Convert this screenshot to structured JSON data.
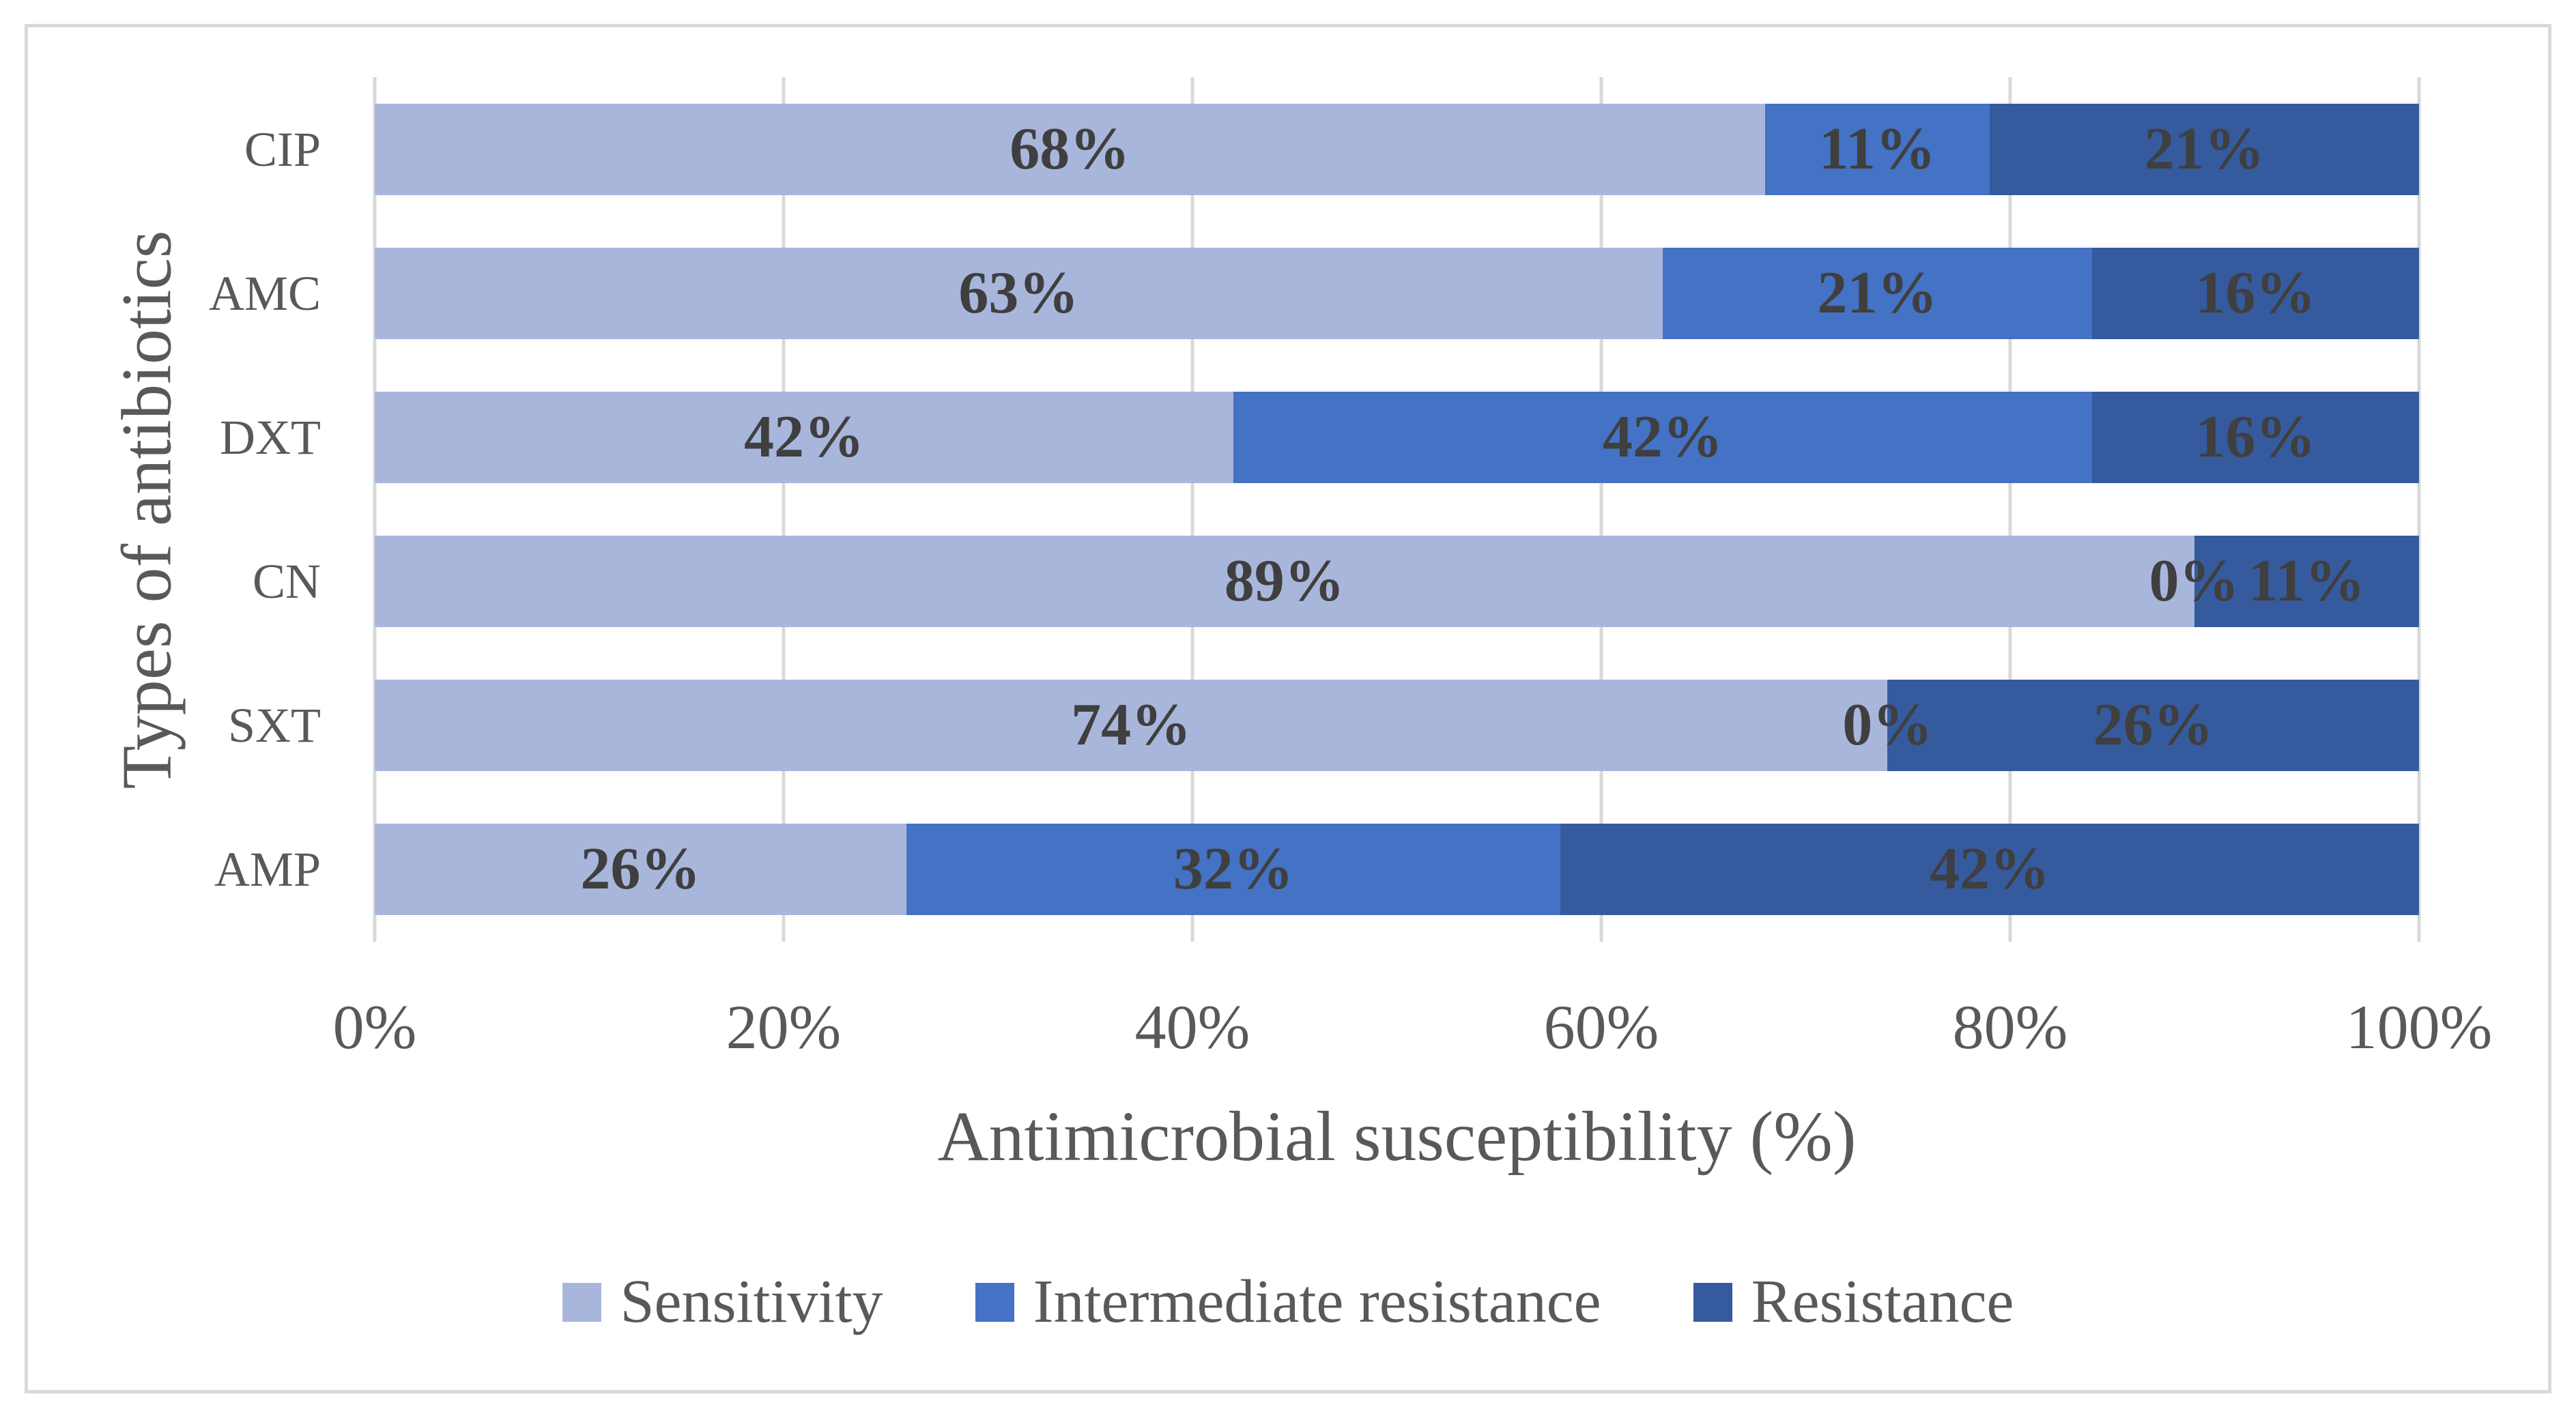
{
  "figure": {
    "background": "#FFFFFF",
    "border_color": "#D9D9D9"
  },
  "chart_data": {
    "type": "bar",
    "orientation": "horizontal",
    "stacked": true,
    "categories": [
      "CIP",
      "AMC",
      "DXT",
      "CN",
      "SXT",
      "AMP"
    ],
    "series": [
      {
        "name": "Sensitivity",
        "color": "#A9B6DC",
        "values": [
          68,
          63,
          42,
          89,
          74,
          26
        ]
      },
      {
        "name": "Intermediate resistance",
        "color": "#4472C4",
        "values": [
          11,
          21,
          42,
          0,
          0,
          32
        ]
      },
      {
        "name": "Resistance",
        "color": "#365A9E",
        "values": [
          21,
          16,
          16,
          11,
          26,
          42
        ]
      }
    ],
    "data_label_format": "{v}%",
    "data_label_color": "#3F3F3F",
    "xlabel": "Antimicrobial susceptibility (%)",
    "ylabel": "Types of antibiotics",
    "x_ticks": [
      "0%",
      "20%",
      "40%",
      "60%",
      "80%",
      "100%"
    ],
    "xlim": [
      0,
      100
    ],
    "grid": true,
    "gridline_color": "#D9D9D9",
    "axis_text_color": "#595959",
    "legend_position": "bottom"
  }
}
